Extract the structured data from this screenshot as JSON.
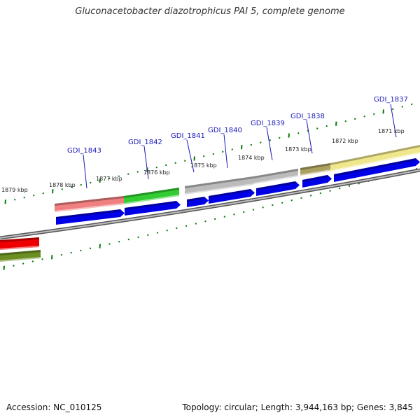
{
  "title": "Gluconacetobacter diazotrophicus PAI 5, complete genome",
  "accession": "Accession: NC_010125",
  "summary": "Topology: circular; Length: 3,944,163 bp; Genes: 3,845",
  "colors": {
    "gene_label": "#1a1ab8",
    "cds": "#0000e6",
    "tick": "#0a7a0a",
    "backbone": "#888888"
  },
  "kbp_labels": [
    "1879 kbp",
    "1878 kbp",
    "1877 kbp",
    "1876 kbp",
    "1875 kbp",
    "1874 kbp",
    "1873 kbp",
    "1872 kbp",
    "1871 kbp"
  ],
  "gene_labels": [
    "GDI_1843",
    "GDI_1842",
    "GDI_1841",
    "GDI_1840",
    "GDI_1839",
    "GDI_1838",
    "GDI_1837"
  ],
  "features": [
    {
      "name": "gene-feature-1843",
      "color": "#f08080"
    },
    {
      "name": "gene-feature-1842",
      "color": "#33cc33"
    },
    {
      "name": "gene-feature-1841",
      "color": "#bbbbbb"
    },
    {
      "name": "gene-feature-1840",
      "color": "#bbbbbb"
    },
    {
      "name": "gene-feature-1839",
      "color": "#bbbbbb"
    },
    {
      "name": "gene-feature-1838",
      "color": "#aaa060"
    },
    {
      "name": "gene-feature-1837",
      "color": "#f0e68c"
    },
    {
      "name": "gene-feature-red",
      "color": "#ee0000"
    },
    {
      "name": "gene-feature-olive",
      "color": "#6b8e23"
    }
  ]
}
